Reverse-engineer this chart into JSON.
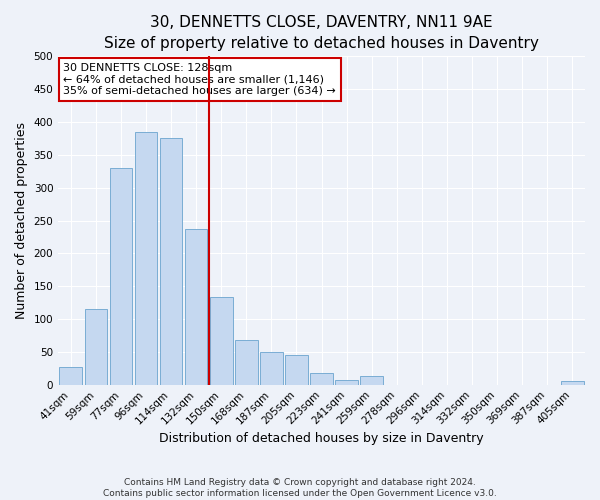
{
  "title": "30, DENNETTS CLOSE, DAVENTRY, NN11 9AE",
  "subtitle": "Size of property relative to detached houses in Daventry",
  "xlabel": "Distribution of detached houses by size in Daventry",
  "ylabel": "Number of detached properties",
  "bar_color": "#c5d8f0",
  "bar_edge_color": "#7aadd4",
  "categories": [
    "41sqm",
    "59sqm",
    "77sqm",
    "96sqm",
    "114sqm",
    "132sqm",
    "150sqm",
    "168sqm",
    "187sqm",
    "205sqm",
    "223sqm",
    "241sqm",
    "259sqm",
    "278sqm",
    "296sqm",
    "314sqm",
    "332sqm",
    "350sqm",
    "369sqm",
    "387sqm",
    "405sqm"
  ],
  "values": [
    27,
    116,
    330,
    385,
    375,
    237,
    133,
    68,
    50,
    45,
    18,
    7,
    13,
    0,
    0,
    0,
    0,
    0,
    0,
    0,
    5
  ],
  "ylim": [
    0,
    500
  ],
  "yticks": [
    0,
    50,
    100,
    150,
    200,
    250,
    300,
    350,
    400,
    450,
    500
  ],
  "vline_x": 5.5,
  "vline_color": "#cc0000",
  "annotation_title": "30 DENNETTS CLOSE: 128sqm",
  "annotation_line1": "← 64% of detached houses are smaller (1,146)",
  "annotation_line2": "35% of semi-detached houses are larger (634) →",
  "annotation_box_color": "#ffffff",
  "annotation_box_edge": "#cc0000",
  "footer_line1": "Contains HM Land Registry data © Crown copyright and database right 2024.",
  "footer_line2": "Contains public sector information licensed under the Open Government Licence v3.0.",
  "background_color": "#eef2f9",
  "grid_color": "#ffffff",
  "title_fontsize": 11,
  "subtitle_fontsize": 9.5,
  "axis_label_fontsize": 9,
  "tick_fontsize": 7.5,
  "footer_fontsize": 6.5,
  "annotation_fontsize": 8
}
